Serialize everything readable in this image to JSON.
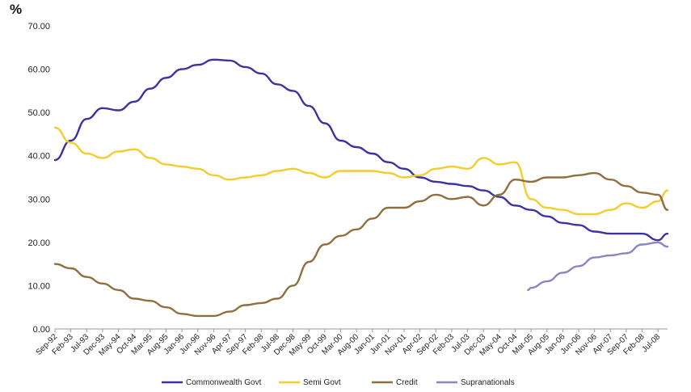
{
  "chart_data": {
    "type": "line",
    "title": "",
    "xlabel": "",
    "ylabel": "%",
    "ylim": [
      0,
      70
    ],
    "y_ticks": [
      "0.00",
      "10.00",
      "20.00",
      "30.00",
      "40.00",
      "50.00",
      "60.00",
      "70.00"
    ],
    "x_ticks": [
      "Sep-92",
      "Feb-93",
      "Jul-93",
      "Dec-93",
      "May-94",
      "Oct-94",
      "Mar-95",
      "Aug-95",
      "Jan-96",
      "Jun-96",
      "Nov-96",
      "Apr-97",
      "Sep-97",
      "Feb-98",
      "Jul-98",
      "Dec-98",
      "May-99",
      "Oct-99",
      "Mar-00",
      "Aug-00",
      "Jan-01",
      "Jun-01",
      "Nov-01",
      "Apr-02",
      "Sep-02",
      "Feb-03",
      "Jul-03",
      "Dec-03",
      "May-04",
      "Oct-04",
      "Mar-05",
      "Aug-05",
      "Jan-06",
      "Jun-06",
      "Nov-06",
      "Apr-07",
      "Sep-07",
      "Feb-08",
      "Jul-08"
    ],
    "grid": false,
    "legend_position": "bottom",
    "series": [
      {
        "name": "Commonwealth Govt",
        "color": "#3b32a3",
        "x": [
          "Sep-92",
          "Feb-93",
          "Jul-93",
          "Dec-93",
          "May-94",
          "Oct-94",
          "Mar-95",
          "Aug-95",
          "Jan-96",
          "Jun-96",
          "Nov-96",
          "Apr-97",
          "Sep-97",
          "Feb-98",
          "Jul-98",
          "Dec-98",
          "May-99",
          "Oct-99",
          "Mar-00",
          "Aug-00",
          "Jan-01",
          "Jun-01",
          "Nov-01",
          "Apr-02",
          "Sep-02",
          "Feb-03",
          "Jul-03",
          "Dec-03",
          "May-04",
          "Oct-04",
          "Mar-05",
          "Aug-05",
          "Jan-06",
          "Jun-06",
          "Nov-06",
          "Apr-07",
          "Sep-07",
          "Feb-08",
          "Jul-08",
          "Oct-08"
        ],
        "values": [
          39.0,
          43.5,
          48.5,
          51.0,
          50.5,
          52.5,
          55.5,
          58.0,
          60.0,
          61.0,
          62.2,
          62.0,
          60.5,
          59.0,
          56.5,
          55.0,
          51.5,
          47.5,
          43.5,
          42.0,
          40.5,
          38.5,
          37.0,
          35.0,
          34.0,
          33.5,
          33.0,
          32.0,
          30.5,
          28.5,
          27.5,
          26.0,
          24.5,
          24.0,
          22.5,
          22.0,
          22.0,
          22.0,
          20.5,
          22.0
        ]
      },
      {
        "name": "Semi Govt",
        "color": "#f4cc2c",
        "x": [
          "Sep-92",
          "Feb-93",
          "Jul-93",
          "Dec-93",
          "May-94",
          "Oct-94",
          "Mar-95",
          "Aug-95",
          "Jan-96",
          "Jun-96",
          "Nov-96",
          "Apr-97",
          "Sep-97",
          "Feb-98",
          "Jul-98",
          "Dec-98",
          "May-99",
          "Oct-99",
          "Mar-00",
          "Aug-00",
          "Jan-01",
          "Jun-01",
          "Nov-01",
          "Apr-02",
          "Sep-02",
          "Feb-03",
          "Jul-03",
          "Dec-03",
          "May-04",
          "Oct-04",
          "Mar-05",
          "Aug-05",
          "Jan-06",
          "Jun-06",
          "Nov-06",
          "Apr-07",
          "Sep-07",
          "Feb-08",
          "Jul-08",
          "Oct-08"
        ],
        "values": [
          46.5,
          43.0,
          40.5,
          39.5,
          41.0,
          41.5,
          39.5,
          38.0,
          37.5,
          37.0,
          35.5,
          34.5,
          35.0,
          35.5,
          36.5,
          37.0,
          36.0,
          35.0,
          36.5,
          36.5,
          36.5,
          36.0,
          35.0,
          35.5,
          37.0,
          37.5,
          37.0,
          39.5,
          38.0,
          38.5,
          30.0,
          28.0,
          27.5,
          26.5,
          26.5,
          27.5,
          29.0,
          28.0,
          29.5,
          32.0
        ]
      },
      {
        "name": "Credit",
        "color": "#8e6f3e",
        "x": [
          "Sep-92",
          "Feb-93",
          "Jul-93",
          "Dec-93",
          "May-94",
          "Oct-94",
          "Mar-95",
          "Aug-95",
          "Jan-96",
          "Jun-96",
          "Nov-96",
          "Apr-97",
          "Sep-97",
          "Feb-98",
          "Jul-98",
          "Dec-98",
          "May-99",
          "Oct-99",
          "Mar-00",
          "Aug-00",
          "Jan-01",
          "Jun-01",
          "Nov-01",
          "Apr-02",
          "Sep-02",
          "Feb-03",
          "Jul-03",
          "Dec-03",
          "May-04",
          "Oct-04",
          "Mar-05",
          "Aug-05",
          "Jan-06",
          "Jun-06",
          "Nov-06",
          "Apr-07",
          "Sep-07",
          "Feb-08",
          "Jul-08",
          "Oct-08"
        ],
        "values": [
          15.0,
          14.0,
          12.0,
          10.5,
          9.0,
          7.0,
          6.5,
          5.0,
          3.5,
          3.0,
          3.0,
          4.0,
          5.5,
          6.0,
          7.0,
          10.0,
          15.5,
          19.5,
          21.5,
          23.0,
          25.5,
          28.0,
          28.0,
          29.5,
          31.0,
          30.0,
          30.5,
          28.5,
          31.0,
          34.5,
          34.0,
          35.0,
          35.0,
          35.5,
          36.0,
          34.5,
          33.0,
          31.5,
          31.0,
          27.5
        ]
      },
      {
        "name": "Supranationals",
        "color": "#8a86c2",
        "x": [
          "Feb-05",
          "Mar-05",
          "Aug-05",
          "Jan-06",
          "Jun-06",
          "Nov-06",
          "Apr-07",
          "Sep-07",
          "Feb-08",
          "Jul-08",
          "Oct-08"
        ],
        "values": [
          9.0,
          9.5,
          11.0,
          13.0,
          14.5,
          16.5,
          17.0,
          17.5,
          19.5,
          20.0,
          19.0
        ]
      }
    ]
  }
}
